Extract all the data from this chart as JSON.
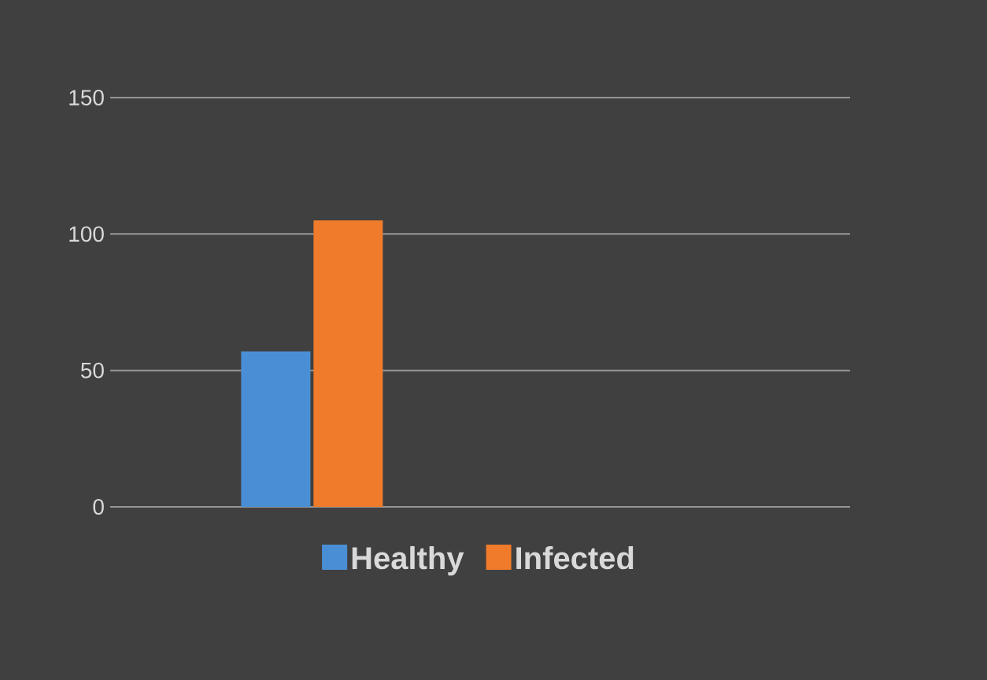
{
  "chart_data": {
    "type": "bar",
    "categories": [
      null
    ],
    "series": [
      {
        "name": "Healthy",
        "color": "#4a8fd6",
        "values": [
          57
        ]
      },
      {
        "name": "Infected",
        "color": "#f07b2a",
        "values": [
          105
        ]
      }
    ],
    "ylim": [
      0,
      150
    ],
    "yticks": [
      0,
      50,
      100,
      150
    ],
    "grid": "y",
    "legend": "bottom"
  }
}
